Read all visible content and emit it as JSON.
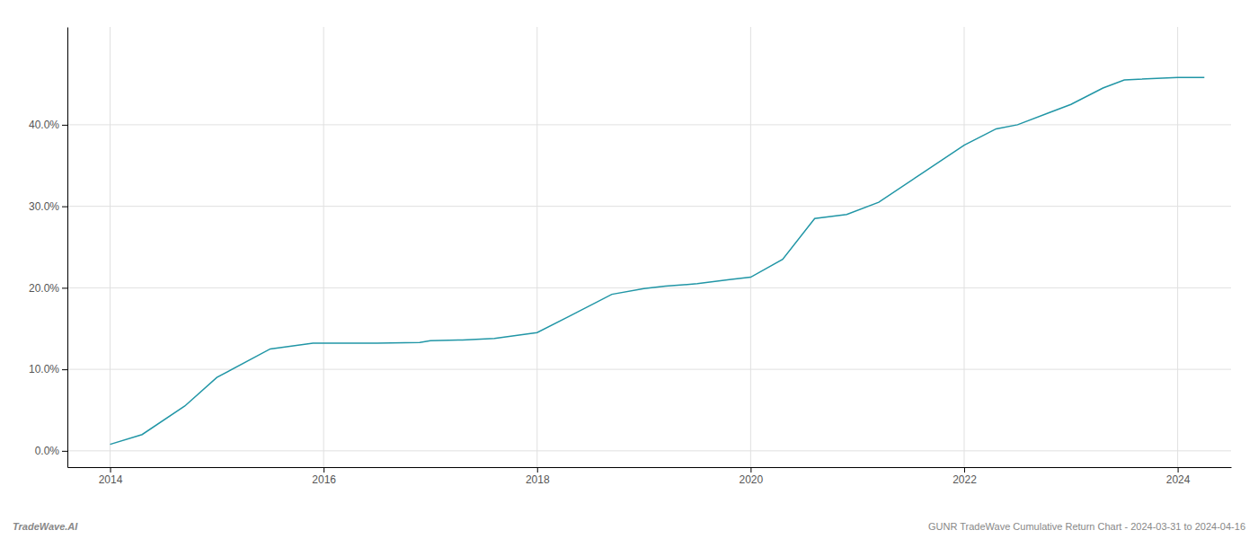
{
  "chart_data": {
    "type": "line",
    "x": [
      2014.0,
      2014.3,
      2014.7,
      2015.0,
      2015.5,
      2015.9,
      2016.1,
      2016.5,
      2016.9,
      2017.0,
      2017.3,
      2017.6,
      2018.0,
      2018.3,
      2018.7,
      2019.0,
      2019.2,
      2019.5,
      2019.8,
      2020.0,
      2020.3,
      2020.6,
      2020.9,
      2021.2,
      2021.6,
      2022.0,
      2022.3,
      2022.5,
      2022.8,
      2023.0,
      2023.3,
      2023.5,
      2024.0,
      2024.25
    ],
    "values": [
      0.008,
      0.02,
      0.055,
      0.09,
      0.125,
      0.132,
      0.132,
      0.132,
      0.133,
      0.135,
      0.136,
      0.138,
      0.145,
      0.165,
      0.192,
      0.199,
      0.202,
      0.205,
      0.21,
      0.213,
      0.235,
      0.285,
      0.29,
      0.305,
      0.34,
      0.375,
      0.395,
      0.4,
      0.415,
      0.425,
      0.445,
      0.455,
      0.458,
      0.458
    ],
    "color": "#2196a6",
    "xlim": [
      2013.6,
      2024.5
    ],
    "ylim": [
      -0.02,
      0.52
    ],
    "xticks": [
      2014,
      2016,
      2018,
      2020,
      2022,
      2024
    ],
    "yticks": [
      {
        "value": 0.0,
        "label": "0.0%"
      },
      {
        "value": 0.1,
        "label": "10.0%"
      },
      {
        "value": 0.2,
        "label": "20.0%"
      },
      {
        "value": 0.3,
        "label": "30.0%"
      },
      {
        "value": 0.4,
        "label": "40.0%"
      }
    ],
    "grid": true,
    "annotations": [
      "TradeWave.AI",
      "GUNR TradeWave Cumulative Return Chart - 2024-03-31 to 2024-04-16"
    ]
  }
}
